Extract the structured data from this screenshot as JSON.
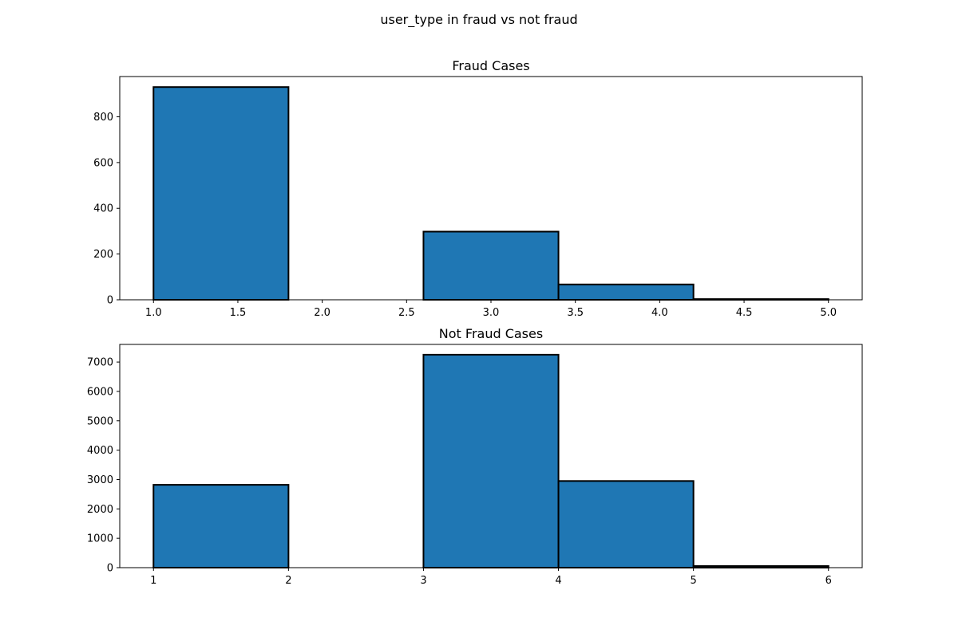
{
  "figure": {
    "suptitle": "user_type in fraud vs not fraud",
    "bar_color": "#1f77b4",
    "edge_color": "#000000"
  },
  "chart_data": [
    {
      "type": "bar",
      "subtype": "histogram",
      "title": "Fraud Cases",
      "xlabel": "",
      "ylabel": "",
      "bins": [
        {
          "x0": 1.0,
          "x1": 1.8,
          "count": 930
        },
        {
          "x0": 1.8,
          "x1": 2.6,
          "count": 0
        },
        {
          "x0": 2.6,
          "x1": 3.4,
          "count": 298
        },
        {
          "x0": 3.4,
          "x1": 4.2,
          "count": 67
        },
        {
          "x0": 4.2,
          "x1": 5.0,
          "count": 3
        }
      ],
      "xlim": [
        0.8,
        5.2
      ],
      "ylim": [
        0,
        976
      ],
      "xticks": [
        1.0,
        1.5,
        2.0,
        2.5,
        3.0,
        3.5,
        4.0,
        4.5,
        5.0
      ],
      "xtick_labels": [
        "1.0",
        "1.5",
        "2.0",
        "2.5",
        "3.0",
        "3.5",
        "4.0",
        "4.5",
        "5.0"
      ],
      "yticks": [
        0,
        200,
        400,
        600,
        800
      ],
      "ytick_labels": [
        "0",
        "200",
        "400",
        "600",
        "800"
      ],
      "grid": false,
      "legend": null
    },
    {
      "type": "bar",
      "subtype": "histogram",
      "title": "Not Fraud Cases",
      "xlabel": "",
      "ylabel": "",
      "bins": [
        {
          "x0": 1,
          "x1": 2,
          "count": 2820
        },
        {
          "x0": 2,
          "x1": 3,
          "count": 0
        },
        {
          "x0": 3,
          "x1": 4,
          "count": 7250
        },
        {
          "x0": 4,
          "x1": 5,
          "count": 2950
        },
        {
          "x0": 5,
          "x1": 6,
          "count": 55
        }
      ],
      "xlim": [
        0.75,
        6.25
      ],
      "ylim": [
        0,
        7600
      ],
      "xticks": [
        1,
        2,
        3,
        4,
        5,
        6
      ],
      "xtick_labels": [
        "1",
        "2",
        "3",
        "4",
        "5",
        "6"
      ],
      "yticks": [
        0,
        1000,
        2000,
        3000,
        4000,
        5000,
        6000,
        7000
      ],
      "ytick_labels": [
        "0",
        "1000",
        "2000",
        "3000",
        "4000",
        "5000",
        "6000",
        "7000"
      ],
      "grid": false,
      "legend": null
    }
  ]
}
